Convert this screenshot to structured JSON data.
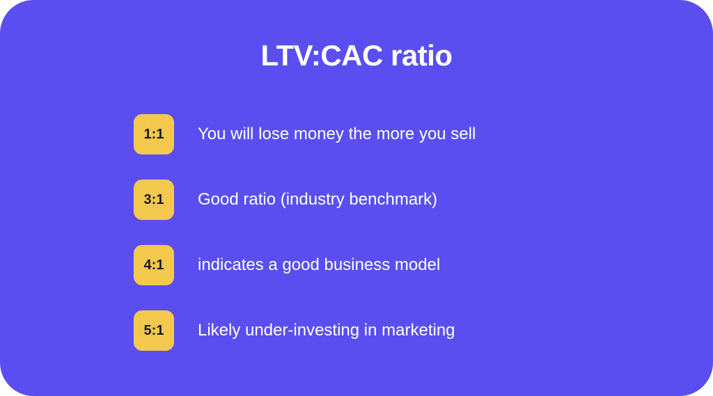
{
  "title": "LTV:CAC ratio",
  "background_color": "#5b4ef0",
  "card_border_radius": 48,
  "title_color": "#ffffff",
  "title_fontsize": 42,
  "badge_bg": "#f2c94c",
  "badge_text_color": "#1a1a1a",
  "badge_fontsize": 20,
  "badge_size": 58,
  "badge_radius": 12,
  "desc_color": "#ffffff",
  "desc_fontsize": 24,
  "row_gap": 36,
  "items": [
    {
      "ratio": "1:1",
      "text": "You will lose money the more you sell"
    },
    {
      "ratio": "3:1",
      "text": "Good ratio (industry benchmark)"
    },
    {
      "ratio": "4:1",
      "text": "indicates a good business model"
    },
    {
      "ratio": "5:1",
      "text": "Likely under-investing in marketing"
    }
  ]
}
